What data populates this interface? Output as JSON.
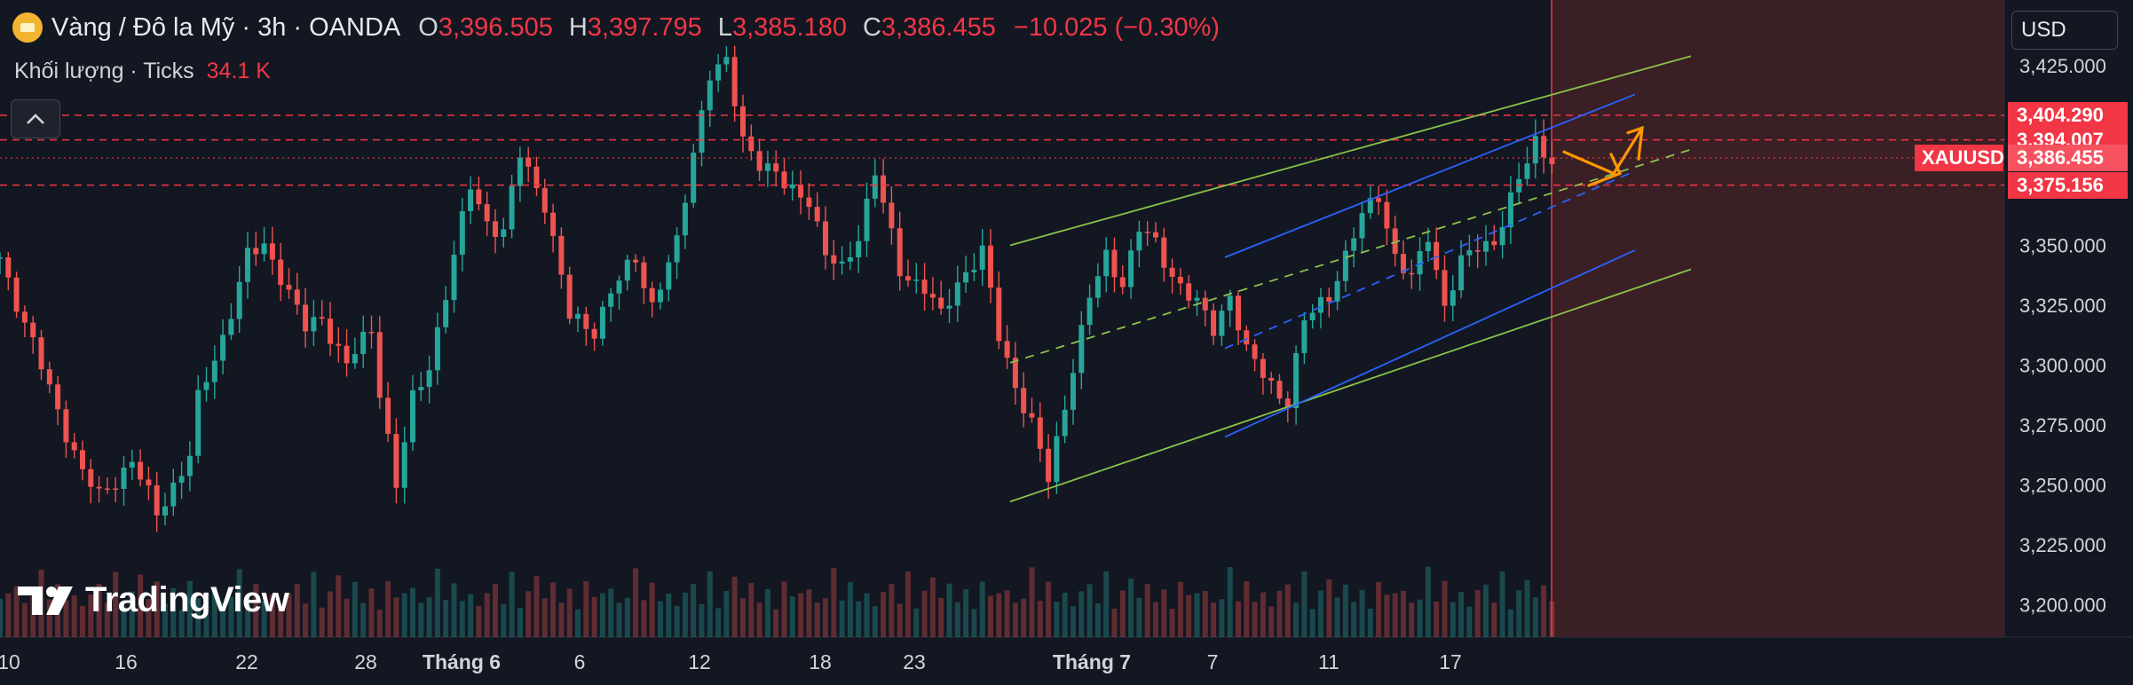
{
  "header": {
    "symbol_title": "Vàng / Đô la Mỹ · 3h · OANDA",
    "o_label": "O",
    "o_value": "3,396.505",
    "h_label": "H",
    "h_value": "3,397.795",
    "l_label": "L",
    "l_value": "3,385.180",
    "c_label": "C",
    "c_value": "3,386.455",
    "change": "−10.025 (−0.30%)"
  },
  "volume": {
    "label": "Khối lượng · Ticks",
    "value": "34.1 K"
  },
  "currency_button": "USD",
  "watermark": "TradingView",
  "colors": {
    "up": "#26a69a",
    "down": "#ef5350",
    "price_line": "#f23645",
    "blue_channel": "#2962ff",
    "green_channel": "#8bc34a",
    "arrow": "#ff9800",
    "forecast_zone": "#3a1f25"
  },
  "chart_data": {
    "type": "candlestick",
    "interval": "3h",
    "x_tick_labels": [
      "10",
      "16",
      "22",
      "28",
      "Tháng 6",
      "6",
      "12",
      "18",
      "23",
      "Tháng 7",
      "7",
      "11",
      "17"
    ],
    "y_tick_labels": [
      "3,425.000",
      "3,350.000",
      "3,325.000",
      "3,300.000",
      "3,275.000",
      "3,250.000",
      "3,225.000",
      "3,200.000"
    ],
    "ylim": [
      3193,
      3437
    ],
    "last_price": 3386.455,
    "price_labels": [
      {
        "value": "3,404.290",
        "num": 3404.29
      },
      {
        "value": "3,394.007",
        "num": 3394.007
      },
      {
        "value": "3,386.455",
        "num": 3386.455,
        "symbol": "XAUUSD"
      },
      {
        "value": "3,375.156",
        "num": 3375.156
      }
    ],
    "horizontal_levels": [
      3404.29,
      3394.007,
      3375.156
    ],
    "price_path_anchors": [
      [
        0,
        3345
      ],
      [
        6,
        3290
      ],
      [
        10,
        3255
      ],
      [
        12,
        3245
      ],
      [
        16,
        3260
      ],
      [
        19,
        3238
      ],
      [
        23,
        3262
      ],
      [
        24,
        3285
      ],
      [
        27,
        3312
      ],
      [
        30,
        3345
      ],
      [
        32,
        3350
      ],
      [
        34,
        3338
      ],
      [
        37,
        3315
      ],
      [
        39,
        3320
      ],
      [
        42,
        3300
      ],
      [
        45,
        3315
      ],
      [
        46,
        3290
      ],
      [
        48,
        3250
      ],
      [
        50,
        3285
      ],
      [
        52,
        3300
      ],
      [
        55,
        3345
      ],
      [
        57,
        3375
      ],
      [
        59,
        3360
      ],
      [
        61,
        3355
      ],
      [
        63,
        3388
      ],
      [
        66,
        3368
      ],
      [
        69,
        3320
      ],
      [
        72,
        3315
      ],
      [
        74,
        3330
      ],
      [
        77,
        3345
      ],
      [
        79,
        3325
      ],
      [
        82,
        3350
      ],
      [
        84,
        3390
      ],
      [
        86,
        3422
      ],
      [
        88,
        3425
      ],
      [
        90,
        3395
      ],
      [
        92,
        3385
      ],
      [
        95,
        3375
      ],
      [
        98,
        3370
      ],
      [
        100,
        3345
      ],
      [
        102,
        3340
      ],
      [
        104,
        3355
      ],
      [
        106,
        3380
      ],
      [
        109,
        3340
      ],
      [
        112,
        3332
      ],
      [
        114,
        3320
      ],
      [
        116,
        3335
      ],
      [
        119,
        3347
      ],
      [
        121,
        3312
      ],
      [
        123,
        3292
      ],
      [
        125,
        3275
      ],
      [
        127,
        3252
      ],
      [
        130,
        3300
      ],
      [
        132,
        3328
      ],
      [
        134,
        3345
      ],
      [
        136,
        3335
      ],
      [
        138,
        3357
      ],
      [
        140,
        3350
      ],
      [
        142,
        3338
      ],
      [
        145,
        3325
      ],
      [
        147,
        3315
      ],
      [
        149,
        3330
      ],
      [
        151,
        3305
      ],
      [
        154,
        3292
      ],
      [
        156,
        3285
      ],
      [
        158,
        3318
      ],
      [
        161,
        3330
      ],
      [
        163,
        3345
      ],
      [
        165,
        3362
      ],
      [
        167,
        3372
      ],
      [
        169,
        3345
      ],
      [
        171,
        3335
      ],
      [
        173,
        3355
      ],
      [
        175,
        3325
      ],
      [
        177,
        3342
      ],
      [
        179,
        3350
      ],
      [
        181,
        3352
      ],
      [
        183,
        3368
      ],
      [
        186,
        3394
      ],
      [
        188,
        3386
      ]
    ],
    "volume_profile": [
      0.6,
      0.45,
      0.8,
      0.3,
      0.5,
      0.9,
      0.4,
      0.7,
      0.35,
      0.55,
      0.25,
      0.65
    ]
  }
}
